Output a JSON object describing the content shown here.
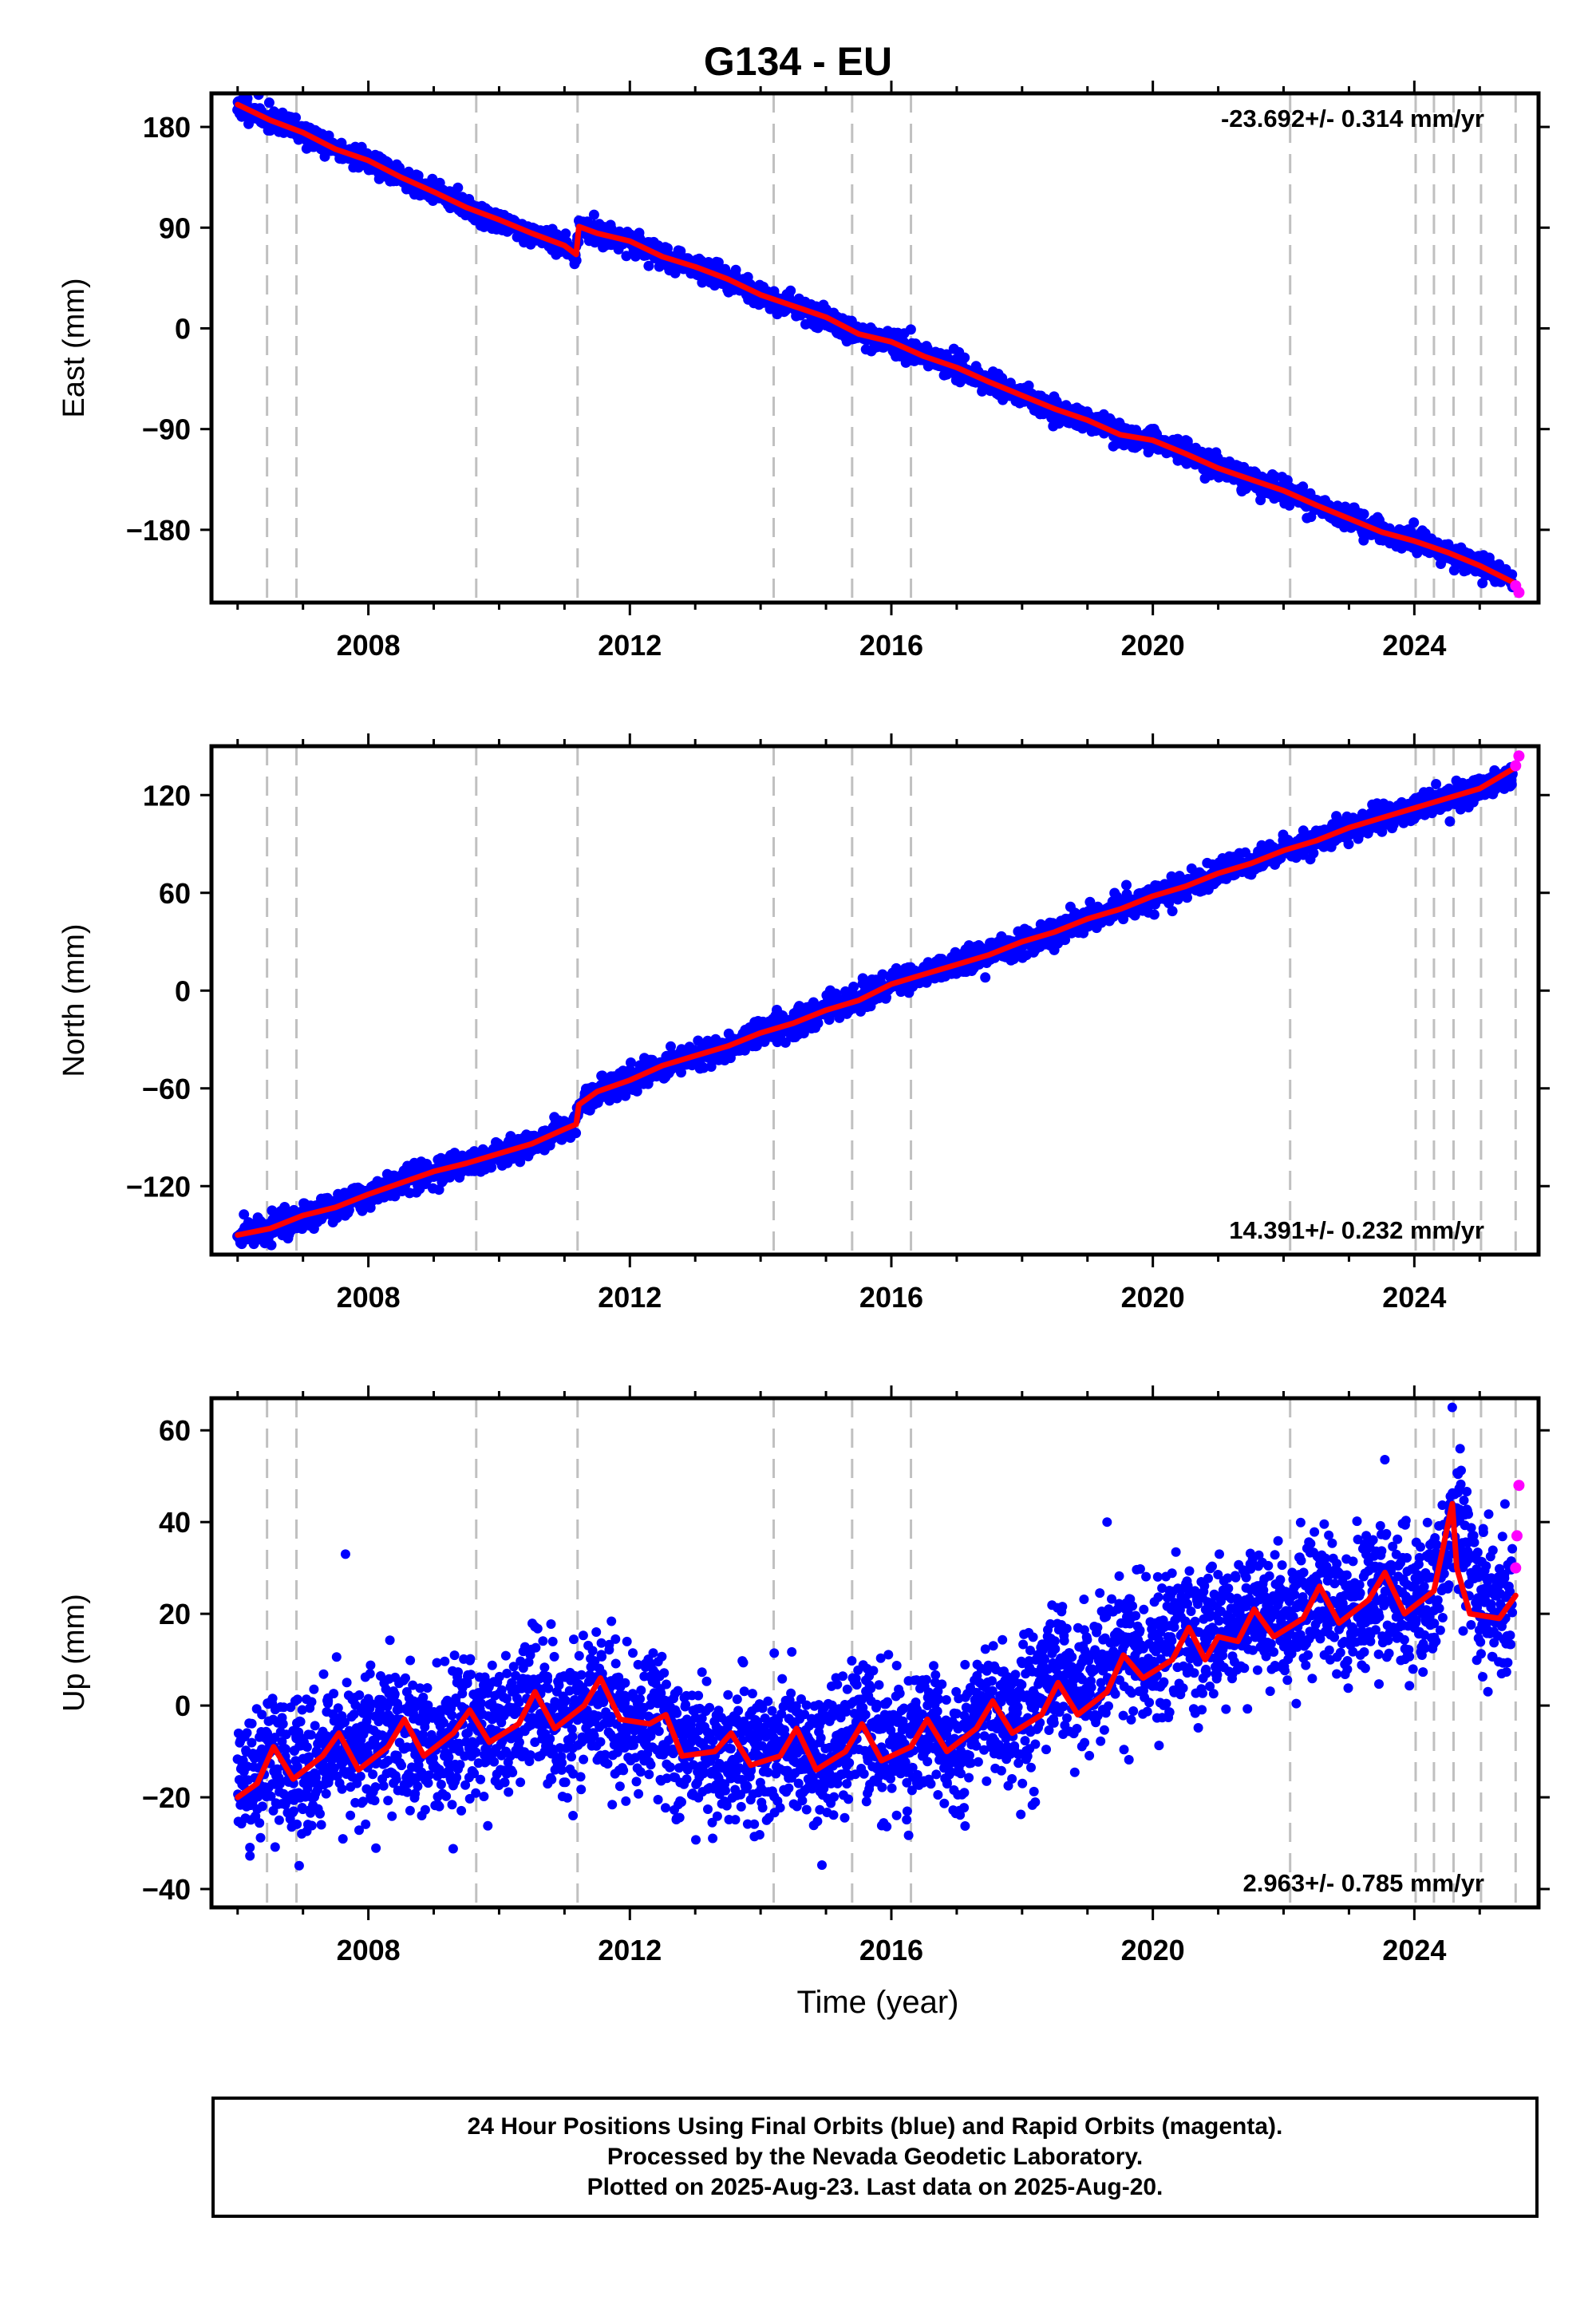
{
  "title": "G134 - EU",
  "xlabel": "Time (year)",
  "footer": {
    "line1": "24 Hour Positions Using Final Orbits (blue) and Rapid Orbits (magenta).",
    "line2": "Processed by the Nevada Geodetic Laboratory.",
    "line3": "Plotted on 2025-Aug-23. Last data on 2025-Aug-20."
  },
  "colors": {
    "final": "#0000ff",
    "rapid": "#ff00ff",
    "model": "#ff0000",
    "events": "#c0c0c0"
  },
  "chart_data": [
    {
      "type": "scatter",
      "ylabel": "East (mm)",
      "rate_label": "-23.692+/- 0.314 mm/yr",
      "rate_position": "top-right",
      "xlim": [
        2005.6,
        2025.9
      ],
      "ylim": [
        -245,
        210
      ],
      "x_ticks": [
        2008,
        2012,
        2016,
        2020,
        2024
      ],
      "y_ticks": [
        180,
        90,
        0,
        -90,
        -180
      ],
      "event_lines": [
        2006.45,
        2006.9,
        2009.65,
        2011.2,
        2014.2,
        2015.4,
        2016.3,
        2022.1,
        2024.02,
        2024.3,
        2024.6,
        2025.02,
        2025.55
      ],
      "series": [
        {
          "role": "final",
          "x": [
            2006.0,
            2006.5,
            2007.0,
            2007.5,
            2008.0,
            2008.5,
            2009.0,
            2009.5,
            2010.0,
            2010.5,
            2011.0,
            2011.18,
            2011.22,
            2011.5,
            2012.0,
            2012.5,
            2013.0,
            2013.5,
            2014.0,
            2014.5,
            2015.0,
            2015.5,
            2016.0,
            2016.5,
            2017.0,
            2017.5,
            2018.0,
            2018.5,
            2019.0,
            2019.5,
            2020.0,
            2020.5,
            2021.0,
            2021.5,
            2022.0,
            2022.5,
            2023.0,
            2023.5,
            2024.0,
            2024.5,
            2025.0,
            2025.5
          ],
          "y": [
            200,
            186,
            175,
            160,
            150,
            135,
            122,
            108,
            97,
            85,
            74,
            66,
            91,
            85,
            78,
            64,
            55,
            44,
            30,
            20,
            10,
            -5,
            -12,
            -25,
            -35,
            -48,
            -60,
            -72,
            -82,
            -95,
            -100,
            -112,
            -125,
            -135,
            -145,
            -158,
            -170,
            -182,
            -190,
            -200,
            -212,
            -225
          ]
        },
        {
          "role": "rapid",
          "x": [
            2025.55,
            2025.6
          ],
          "y": [
            -230,
            -236
          ]
        }
      ],
      "model_fit": {
        "x": [
          2006.0,
          2006.5,
          2007.0,
          2007.5,
          2008.0,
          2008.5,
          2009.0,
          2009.5,
          2010.0,
          2010.5,
          2011.0,
          2011.18,
          2011.22,
          2011.5,
          2012.0,
          2012.5,
          2013.0,
          2013.5,
          2014.0,
          2014.5,
          2015.0,
          2015.5,
          2016.0,
          2016.5,
          2017.0,
          2017.5,
          2018.0,
          2018.5,
          2019.0,
          2019.5,
          2020.0,
          2020.5,
          2021.0,
          2021.5,
          2022.0,
          2022.5,
          2023.0,
          2023.5,
          2024.0,
          2024.5,
          2025.0,
          2025.55
        ],
        "y": [
          200,
          186,
          175,
          160,
          150,
          135,
          122,
          108,
          97,
          85,
          74,
          66,
          91,
          85,
          78,
          64,
          55,
          44,
          30,
          20,
          10,
          -5,
          -12,
          -25,
          -35,
          -48,
          -60,
          -72,
          -82,
          -95,
          -100,
          -112,
          -125,
          -135,
          -145,
          -158,
          -170,
          -182,
          -190,
          -200,
          -212,
          -228
        ]
      }
    },
    {
      "type": "scatter",
      "ylabel": "North (mm)",
      "rate_label": "14.391+/- 0.232 mm/yr",
      "rate_position": "bottom-right",
      "xlim": [
        2005.6,
        2025.9
      ],
      "ylim": [
        -162,
        150
      ],
      "x_ticks": [
        2008,
        2012,
        2016,
        2020,
        2024
      ],
      "y_ticks": [
        120,
        60,
        0,
        -60,
        -120
      ],
      "event_lines": [
        2006.45,
        2006.9,
        2009.65,
        2011.2,
        2014.2,
        2015.4,
        2016.3,
        2022.1,
        2024.02,
        2024.3,
        2024.6,
        2025.02,
        2025.55
      ],
      "series": [
        {
          "role": "final",
          "x": [
            2006.0,
            2006.5,
            2007.0,
            2007.5,
            2008.0,
            2008.5,
            2009.0,
            2009.5,
            2010.0,
            2010.5,
            2011.0,
            2011.18,
            2011.22,
            2011.5,
            2012.0,
            2012.5,
            2013.0,
            2013.5,
            2014.0,
            2014.5,
            2015.0,
            2015.5,
            2016.0,
            2016.5,
            2017.0,
            2017.5,
            2018.0,
            2018.5,
            2019.0,
            2019.5,
            2020.0,
            2020.5,
            2021.0,
            2021.5,
            2022.0,
            2022.5,
            2023.0,
            2023.5,
            2024.0,
            2024.5,
            2025.0,
            2025.5
          ],
          "y": [
            -150,
            -146,
            -138,
            -133,
            -125,
            -118,
            -111,
            -106,
            -100,
            -94,
            -85,
            -82,
            -70,
            -62,
            -55,
            -46,
            -40,
            -34,
            -26,
            -20,
            -12,
            -6,
            4,
            10,
            16,
            22,
            30,
            36,
            44,
            50,
            58,
            64,
            72,
            78,
            86,
            92,
            100,
            106,
            112,
            118,
            124,
            132
          ]
        },
        {
          "role": "rapid",
          "x": [
            2025.55,
            2025.6
          ],
          "y": [
            138,
            144
          ]
        }
      ],
      "model_fit": {
        "x": [
          2006.0,
          2006.5,
          2007.0,
          2007.5,
          2008.0,
          2008.5,
          2009.0,
          2009.5,
          2010.0,
          2010.5,
          2011.0,
          2011.18,
          2011.22,
          2011.5,
          2012.0,
          2012.5,
          2013.0,
          2013.5,
          2014.0,
          2014.5,
          2015.0,
          2015.5,
          2016.0,
          2016.5,
          2017.0,
          2017.5,
          2018.0,
          2018.5,
          2019.0,
          2019.5,
          2020.0,
          2020.5,
          2021.0,
          2021.5,
          2022.0,
          2022.5,
          2023.0,
          2023.5,
          2024.0,
          2024.5,
          2025.0,
          2025.55
        ],
        "y": [
          -150,
          -146,
          -138,
          -133,
          -125,
          -118,
          -111,
          -106,
          -100,
          -94,
          -85,
          -82,
          -70,
          -62,
          -55,
          -46,
          -40,
          -34,
          -26,
          -20,
          -12,
          -6,
          4,
          10,
          16,
          22,
          30,
          36,
          44,
          50,
          58,
          64,
          72,
          78,
          86,
          92,
          100,
          106,
          112,
          118,
          124,
          137
        ]
      }
    },
    {
      "type": "scatter",
      "ylabel": "Up (mm)",
      "rate_label": "2.963+/- 0.785 mm/yr",
      "rate_position": "bottom-right",
      "xlim": [
        2005.6,
        2025.9
      ],
      "ylim": [
        -44,
        67
      ],
      "x_ticks": [
        2008,
        2012,
        2016,
        2020,
        2024
      ],
      "y_ticks": [
        60,
        40,
        20,
        0,
        -20,
        -40
      ],
      "event_lines": [
        2006.45,
        2006.9,
        2009.65,
        2011.2,
        2014.2,
        2015.4,
        2016.3,
        2022.1,
        2024.02,
        2024.3,
        2024.6,
        2025.02,
        2025.55
      ],
      "series": [
        {
          "role": "final",
          "x": [
            2006.0,
            2006.5,
            2007.0,
            2007.5,
            2008.0,
            2008.5,
            2009.0,
            2009.5,
            2010.0,
            2010.5,
            2011.0,
            2011.5,
            2012.0,
            2012.5,
            2012.8,
            2013.0,
            2013.5,
            2014.0,
            2014.5,
            2015.0,
            2015.5,
            2016.0,
            2016.5,
            2017.0,
            2017.5,
            2018.0,
            2018.5,
            2019.0,
            2019.5,
            2020.0,
            2020.5,
            2021.0,
            2021.5,
            2022.0,
            2022.5,
            2023.0,
            2023.5,
            2024.0,
            2024.5,
            2024.62,
            2025.0,
            2025.5
          ],
          "y": [
            -20,
            -10,
            -15,
            -8,
            -12,
            -5,
            -10,
            -3,
            -6,
            1,
            -4,
            3,
            -4,
            -3,
            -11,
            -9,
            -13,
            -11,
            -8,
            -12,
            -6,
            -9,
            -5,
            -8,
            0,
            -3,
            8,
            3,
            13,
            8,
            17,
            13,
            21,
            16,
            24,
            18,
            27,
            22,
            31,
            42,
            22,
            24
          ]
        },
        {
          "role": "rapid",
          "x": [
            2025.55,
            2025.57,
            2025.6
          ],
          "y": [
            30,
            37,
            48
          ]
        },
        {
          "role": "outlier",
          "x": [
            2007.65,
            2019.3,
            2024.58,
            2024.7
          ],
          "y": [
            33,
            40,
            65,
            56
          ]
        }
      ],
      "model_fit": {
        "x": [
          2006.0,
          2006.3,
          2006.55,
          2006.85,
          2007.3,
          2007.55,
          2007.85,
          2008.3,
          2008.55,
          2008.85,
          2009.3,
          2009.55,
          2009.85,
          2010.3,
          2010.55,
          2010.85,
          2011.3,
          2011.55,
          2011.85,
          2012.3,
          2012.55,
          2012.8,
          2013.3,
          2013.55,
          2013.85,
          2014.3,
          2014.55,
          2014.85,
          2015.3,
          2015.55,
          2015.85,
          2016.3,
          2016.55,
          2016.85,
          2017.3,
          2017.55,
          2017.85,
          2018.3,
          2018.55,
          2018.85,
          2019.3,
          2019.55,
          2019.85,
          2020.3,
          2020.55,
          2020.8,
          2021.0,
          2021.3,
          2021.55,
          2021.85,
          2022.3,
          2022.55,
          2022.85,
          2023.3,
          2023.55,
          2023.85,
          2024.3,
          2024.58,
          2024.65,
          2024.85,
          2025.3,
          2025.55
        ],
        "y": [
          -20,
          -17,
          -9,
          -16,
          -11,
          -6,
          -14,
          -9,
          -3,
          -11,
          -6,
          -1,
          -8,
          -4,
          3,
          -5,
          0,
          6,
          -3,
          -4,
          -2,
          -11,
          -10,
          -6,
          -13,
          -11,
          -5,
          -14,
          -10,
          -4,
          -12,
          -9,
          -3,
          -10,
          -5,
          1,
          -6,
          -2,
          5,
          -2,
          3,
          11,
          6,
          10,
          17,
          10,
          15,
          14,
          21,
          15,
          19,
          26,
          18,
          23,
          29,
          20,
          25,
          44,
          30,
          20,
          19,
          24
        ]
      }
    }
  ]
}
